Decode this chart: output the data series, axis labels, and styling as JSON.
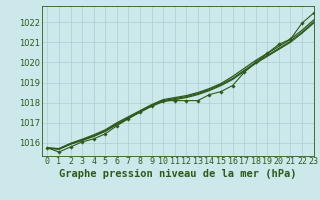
{
  "title": "Graphe pression niveau de la mer (hPa)",
  "background_color": "#cce8ea",
  "grid_color": "#aacfd2",
  "line_color": "#2d5a1b",
  "xlim": [
    -0.5,
    23
  ],
  "ylim": [
    1015.35,
    1022.8
  ],
  "yticks": [
    1016,
    1017,
    1018,
    1019,
    1020,
    1021,
    1022
  ],
  "xticks": [
    0,
    1,
    2,
    3,
    4,
    5,
    6,
    7,
    8,
    9,
    10,
    11,
    12,
    13,
    14,
    15,
    16,
    17,
    18,
    19,
    20,
    21,
    22,
    23
  ],
  "hours": [
    0,
    1,
    2,
    3,
    4,
    5,
    6,
    7,
    8,
    9,
    10,
    11,
    12,
    13,
    14,
    15,
    16,
    17,
    18,
    19,
    20,
    21,
    22,
    23
  ],
  "line_measured": [
    1015.75,
    1015.55,
    1015.8,
    1016.05,
    1016.2,
    1016.45,
    1016.85,
    1017.2,
    1017.55,
    1017.85,
    1018.1,
    1018.1,
    1018.1,
    1018.1,
    1018.4,
    1018.55,
    1018.85,
    1019.5,
    1020.0,
    1020.45,
    1020.9,
    1021.15,
    1021.95,
    1022.45
  ],
  "line_smooth1": [
    1015.75,
    1015.7,
    1015.95,
    1016.15,
    1016.35,
    1016.6,
    1016.95,
    1017.25,
    1017.55,
    1017.85,
    1018.1,
    1018.2,
    1018.3,
    1018.45,
    1018.65,
    1018.9,
    1019.2,
    1019.6,
    1020.0,
    1020.35,
    1020.7,
    1021.05,
    1021.5,
    1022.0
  ],
  "line_smooth2": [
    1015.75,
    1015.72,
    1015.98,
    1016.18,
    1016.4,
    1016.65,
    1017.0,
    1017.3,
    1017.6,
    1017.9,
    1018.15,
    1018.25,
    1018.35,
    1018.5,
    1018.7,
    1018.95,
    1019.3,
    1019.7,
    1020.1,
    1020.45,
    1020.8,
    1021.15,
    1021.6,
    1022.1
  ],
  "line_smooth3": [
    1015.75,
    1015.68,
    1015.93,
    1016.12,
    1016.32,
    1016.57,
    1016.92,
    1017.22,
    1017.52,
    1017.82,
    1018.05,
    1018.15,
    1018.25,
    1018.4,
    1018.6,
    1018.85,
    1019.15,
    1019.55,
    1019.95,
    1020.3,
    1020.65,
    1021.0,
    1021.45,
    1021.95
  ],
  "title_fontsize": 7.5,
  "tick_fontsize": 6
}
